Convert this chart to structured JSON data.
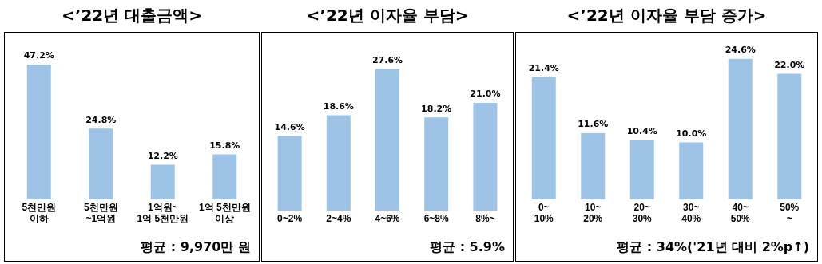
{
  "chart_data": [
    {
      "type": "bar",
      "title": "<’22년 대출금액>",
      "categories": [
        "5천만원\n이하",
        "5천만원\n~1억원",
        "1억원~\n1억 5천만원",
        "1억 5천만원\n이상"
      ],
      "values": [
        47.2,
        24.8,
        12.2,
        15.8
      ],
      "value_labels": [
        "47.2%",
        "24.8%",
        "12.2%",
        "15.8%"
      ],
      "color": "#9dc3e6",
      "annotations": [
        "평균 : 9,970만 원"
      ]
    },
    {
      "type": "bar",
      "title": "<’22년 이자율 부담>",
      "categories": [
        "0~2%",
        "2~4%",
        "4~6%",
        "6~8%",
        "8%~"
      ],
      "values": [
        14.6,
        18.6,
        27.6,
        18.2,
        21.0
      ],
      "value_labels": [
        "14.6%",
        "18.6%",
        "27.6%",
        "18.2%",
        "21.0%"
      ],
      "color": "#9dc3e6",
      "annotations": [
        "평균 : 5.9%"
      ]
    },
    {
      "type": "bar",
      "title": "<’22년 이자율 부담 증가>",
      "categories": [
        "0~\n10%",
        "10~\n20%",
        "20~\n30%",
        "30~\n40%",
        "40~\n50%",
        "50%\n~"
      ],
      "values": [
        21.4,
        11.6,
        10.4,
        10.0,
        24.6,
        22.0
      ],
      "value_labels": [
        "21.4%",
        "11.6%",
        "10.4%",
        "10.0%",
        "24.6%",
        "22.0%"
      ],
      "color": "#9dc3e6",
      "annotations": [
        "평균 : 34%('21년 대비 2%p↑)"
      ]
    }
  ]
}
